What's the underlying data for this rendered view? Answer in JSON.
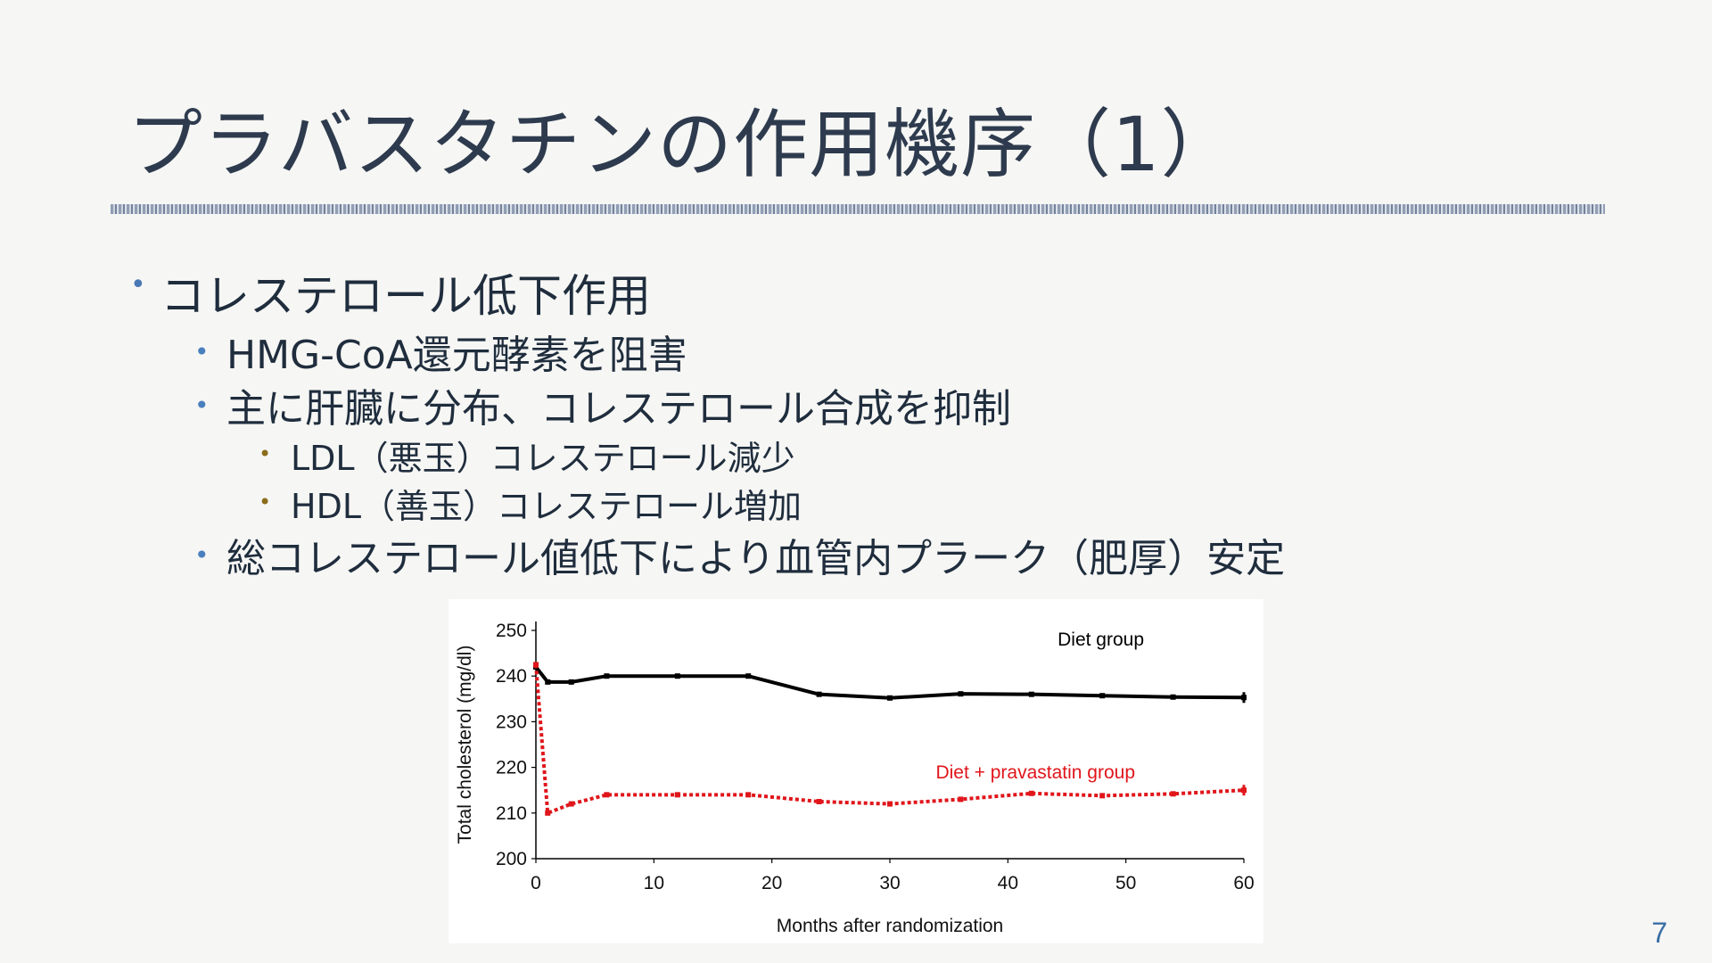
{
  "slide": {
    "title": "プラバスタチンの作用機序（1）",
    "page_number": "7"
  },
  "bullets": {
    "b1": "コレステロール低下作用",
    "b1_1": "HMG-CoA還元酵素を阻害",
    "b1_2": "主に肝臓に分布、コレステロール合成を抑制",
    "b1_2_1": "LDL（悪玉）コレステロール減少",
    "b1_2_2": "HDL（善玉）コレステロール増加",
    "b1_3": "総コレステロール値低下により血管内プラーク（肥厚）安定",
    "marker": "•"
  },
  "chart_data": {
    "type": "line",
    "xlabel": "Months after randomization",
    "ylabel": "Total cholesterol (mg/dl)",
    "xlim": [
      0,
      60
    ],
    "ylim": [
      200,
      250
    ],
    "xticks": [
      0,
      10,
      20,
      30,
      40,
      50,
      60
    ],
    "yticks": [
      200,
      210,
      220,
      230,
      240,
      250
    ],
    "grid": false,
    "series": [
      {
        "name": "Diet group",
        "color": "#000000",
        "style": "solid",
        "x": [
          0,
          1,
          3,
          6,
          12,
          18,
          24,
          30,
          36,
          42,
          48,
          54,
          60
        ],
        "y": [
          242,
          238.7,
          238.7,
          240,
          240,
          240,
          236,
          235.2,
          236.1,
          236,
          235.7,
          235.4,
          235.3
        ]
      },
      {
        "name": "Diet + pravastatin group",
        "color": "#e0161b",
        "style": "dotted",
        "x": [
          0,
          1,
          3,
          6,
          12,
          18,
          24,
          30,
          36,
          42,
          48,
          54,
          60
        ],
        "y": [
          242.5,
          210,
          212,
          214,
          214,
          214,
          212.5,
          212,
          213,
          214.3,
          213.8,
          214.2,
          215
        ]
      }
    ]
  }
}
